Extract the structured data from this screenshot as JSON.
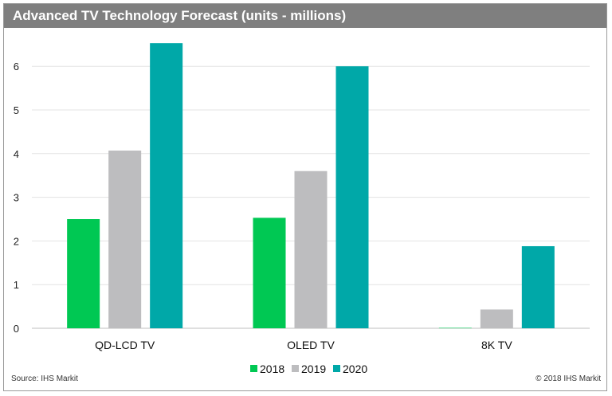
{
  "chart_data": {
    "type": "bar",
    "title": "Advanced TV Technology Forecast (units - millions)",
    "categories": [
      "QD-LCD TV",
      "OLED TV",
      "8K TV"
    ],
    "series": [
      {
        "name": "2018",
        "values": [
          2.5,
          2.53,
          0.01
        ],
        "color": "#00c853"
      },
      {
        "name": "2019",
        "values": [
          4.07,
          3.6,
          0.43
        ],
        "color": "#bdbdbf"
      },
      {
        "name": "2020",
        "values": [
          6.53,
          6.0,
          1.88
        ],
        "color": "#00a8a8"
      }
    ],
    "yticks": [
      "0",
      "1",
      "2",
      "3",
      "4",
      "5",
      "6"
    ],
    "ylim": [
      0,
      7
    ],
    "grid": true,
    "legend": "bottom",
    "xlabel": "",
    "ylabel": ""
  },
  "footer": {
    "source": "Source: IHS Markit",
    "copyright": "© 2018 IHS Markit"
  }
}
